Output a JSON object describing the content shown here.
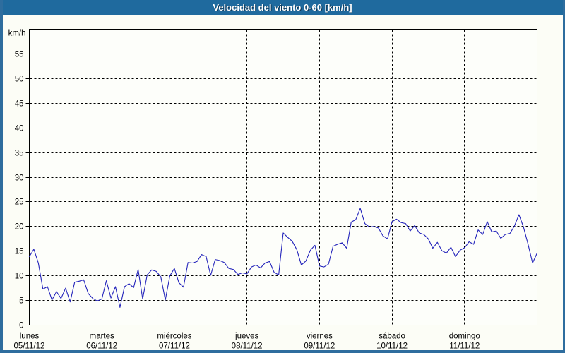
{
  "window": {
    "title": "Velocidad del viento 0-60 [km/h]"
  },
  "colors": {
    "titlebar_bg": "#1f6a9e",
    "frame_border": "#2e6d9e",
    "content_bg": "#fcfdf6",
    "plot_bg": "#fdfefa",
    "grid": "#000000",
    "axis": "#000000",
    "label_text": "#000000",
    "title_text": "#ffffff",
    "series_line": "#2424bb"
  },
  "chart_data": {
    "type": "line",
    "title": "Velocidad del viento 0-60 [km/h]",
    "ylabel": "km/h",
    "xlabel": "",
    "ylim": [
      0,
      60
    ],
    "y_tick_step": 5,
    "y_tick_labels": [
      "0",
      "5",
      "10",
      "15",
      "20",
      "25",
      "30",
      "35",
      "40",
      "45",
      "50",
      "55"
    ],
    "grid": "dashed",
    "legend": "none",
    "x_days": [
      {
        "name": "lunes",
        "date": "05/11/12"
      },
      {
        "name": "martes",
        "date": "06/11/12"
      },
      {
        "name": "miércoles",
        "date": "07/11/12"
      },
      {
        "name": "jueves",
        "date": "08/11/12"
      },
      {
        "name": "viernes",
        "date": "09/11/12"
      },
      {
        "name": "sábado",
        "date": "10/11/12"
      },
      {
        "name": "domingo",
        "date": "11/11/12"
      }
    ],
    "points_per_day": 16,
    "series": [
      {
        "name": "velocidad del viento",
        "unit": "km/h",
        "values": [
          13.9,
          15.4,
          12.6,
          7.3,
          7.8,
          5.1,
          6.8,
          5.4,
          7.5,
          4.7,
          8.7,
          8.9,
          9.2,
          6.4,
          5.4,
          4.9,
          5.3,
          9.0,
          5.5,
          7.8,
          3.6,
          7.8,
          8.4,
          7.6,
          11.3,
          5.3,
          10.2,
          11.2,
          10.9,
          9.8,
          5.1,
          10.0,
          11.5,
          8.6,
          7.7,
          12.7,
          12.6,
          12.9,
          14.3,
          13.9,
          10.1,
          13.3,
          13.1,
          12.7,
          11.5,
          11.3,
          10.3,
          10.6,
          10.4,
          11.8,
          12.2,
          11.6,
          12.6,
          12.9,
          10.7,
          10.2,
          18.7,
          17.8,
          17.0,
          15.3,
          12.2,
          13.0,
          15.2,
          16.2,
          12.0,
          11.8,
          12.4,
          16.0,
          16.4,
          16.7,
          15.6,
          20.9,
          21.4,
          23.7,
          20.6,
          19.9,
          20.0,
          19.7,
          18.1,
          17.5,
          21.0,
          21.5,
          20.8,
          20.6,
          19.1,
          20.2,
          18.7,
          18.4,
          17.5,
          15.6,
          16.8,
          15.1,
          14.6,
          15.8,
          13.9,
          15.2,
          15.7,
          16.9,
          16.4,
          19.3,
          18.4,
          21.0,
          18.9,
          19.1,
          17.6,
          18.4,
          18.6,
          20.1,
          22.4,
          19.9,
          16.4,
          12.6,
          14.6
        ]
      }
    ]
  }
}
